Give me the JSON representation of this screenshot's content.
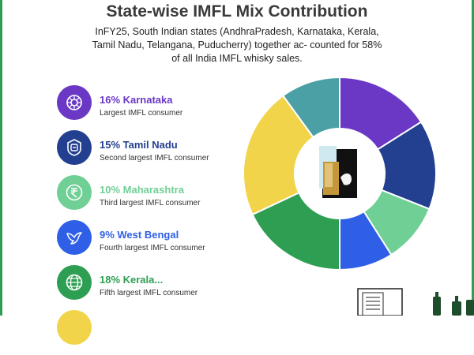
{
  "header": {
    "title": "State-wise IMFL Mix Contribution",
    "subtitle": "InFY25, South Indian states (AndhraPradesh, Karnataka, Kerala, Tamil Nadu, Telangana, Puducherry) together ac- counted for 58% of all India IMFL whisky sales."
  },
  "legend": [
    {
      "head": "16% Karnataka",
      "desc": "Largest IMFL consumer",
      "color": "#6a38c4",
      "icon": "karnataka-emblem-icon"
    },
    {
      "head": "15% Tamil Nadu",
      "desc": "Second largest IMFL consumer",
      "color": "#233f8f",
      "icon": "tamil-nadu-emblem-icon"
    },
    {
      "head": "10% Maharashtra",
      "desc": "Third largest IMFL consumer",
      "color": "#6fcf95",
      "icon": "rupee-coin-icon"
    },
    {
      "head": "9% West Bengal",
      "desc": "Fourth largest IMFL consumer",
      "color": "#2f5fe6",
      "icon": "bird-icon"
    },
    {
      "head": "18% Kerala...",
      "desc": "Fifth largest IMFL consumer",
      "color": "#2e9e52",
      "icon": "globe-icon"
    }
  ],
  "chart_data": {
    "type": "pie",
    "donut": true,
    "legend_placement": "left",
    "slices": [
      {
        "label": "Karnataka",
        "value": 16,
        "color": "#6a38c4"
      },
      {
        "label": "Tamil Nadu",
        "value": 15,
        "color": "#233f8f"
      },
      {
        "label": "Maharashtra",
        "value": 10,
        "color": "#6fcf95"
      },
      {
        "label": "West Bengal",
        "value": 9,
        "color": "#2f5fe6"
      },
      {
        "label": "Kerala",
        "value": 18,
        "color": "#2e9e52"
      },
      {
        "label": "",
        "value": 22,
        "color": "#f2d44a"
      },
      {
        "label": "",
        "value": 10,
        "color": "#4ba0a6"
      }
    ]
  }
}
